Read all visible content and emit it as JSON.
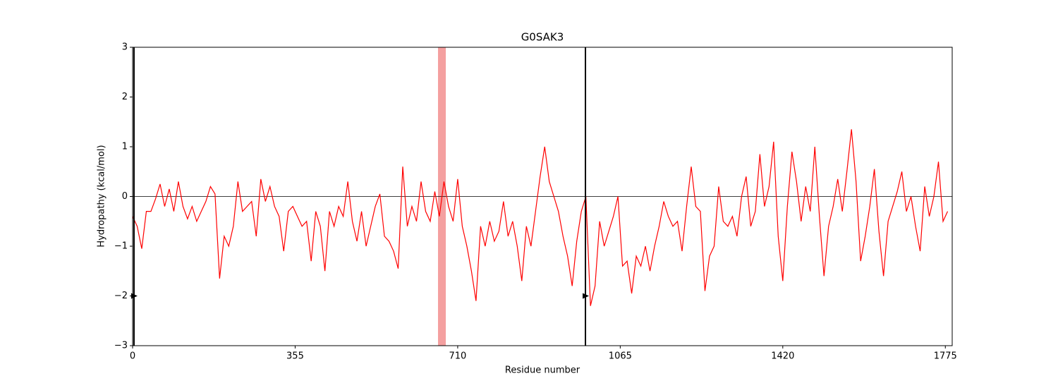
{
  "chart_data": {
    "type": "line",
    "title": "G0SAK3",
    "x_label": "Residue number",
    "y_label": "Hydropathy (kcal/mol)",
    "color": "#ff0000",
    "x": [
      0,
      10,
      20,
      30,
      40,
      50,
      60,
      70,
      80,
      90,
      100,
      110,
      120,
      130,
      140,
      150,
      160,
      170,
      180,
      190,
      200,
      210,
      220,
      230,
      240,
      250,
      260,
      270,
      280,
      290,
      300,
      310,
      320,
      330,
      340,
      350,
      360,
      370,
      380,
      390,
      400,
      410,
      420,
      430,
      440,
      450,
      460,
      470,
      480,
      490,
      500,
      510,
      520,
      530,
      540,
      550,
      560,
      570,
      580,
      590,
      600,
      610,
      620,
      630,
      640,
      650,
      660,
      670,
      680,
      690,
      700,
      710,
      720,
      730,
      740,
      750,
      760,
      770,
      780,
      790,
      800,
      810,
      820,
      830,
      840,
      850,
      860,
      870,
      880,
      890,
      900,
      910,
      920,
      930,
      940,
      950,
      960,
      970,
      980,
      990,
      1000,
      1010,
      1020,
      1030,
      1040,
      1050,
      1060,
      1070,
      1080,
      1090,
      1100,
      1110,
      1120,
      1130,
      1140,
      1150,
      1160,
      1170,
      1180,
      1190,
      1200,
      1210,
      1220,
      1230,
      1240,
      1250,
      1260,
      1270,
      1280,
      1290,
      1300,
      1310,
      1320,
      1330,
      1340,
      1350,
      1360,
      1370,
      1380,
      1390,
      1400,
      1410,
      1420,
      1430,
      1440,
      1450,
      1460,
      1470,
      1480,
      1490,
      1500,
      1510,
      1520,
      1530,
      1540,
      1550,
      1560,
      1570,
      1580,
      1590,
      1600,
      1610,
      1620,
      1630,
      1640,
      1650,
      1660,
      1670,
      1680,
      1690,
      1700,
      1710,
      1720,
      1730,
      1740,
      1750,
      1760,
      1770,
      1780
    ],
    "values": [
      -0.4,
      -0.6,
      -1.05,
      -0.3,
      -0.3,
      -0.05,
      0.25,
      -0.2,
      0.15,
      -0.3,
      0.3,
      -0.2,
      -0.45,
      -0.2,
      -0.5,
      -0.3,
      -0.1,
      0.2,
      0.05,
      -1.65,
      -0.8,
      -1.0,
      -0.6,
      0.3,
      -0.3,
      -0.2,
      -0.1,
      -0.8,
      0.35,
      -0.1,
      0.2,
      -0.2,
      -0.4,
      -1.1,
      -0.3,
      -0.2,
      -0.4,
      -0.6,
      -0.5,
      -1.3,
      -0.3,
      -0.6,
      -1.5,
      -0.3,
      -0.6,
      -0.2,
      -0.4,
      0.3,
      -0.5,
      -0.9,
      -0.3,
      -1.0,
      -0.6,
      -0.2,
      0.05,
      -0.8,
      -0.9,
      -1.1,
      -1.45,
      0.6,
      -0.6,
      -0.2,
      -0.5,
      0.3,
      -0.3,
      -0.5,
      0.1,
      -0.4,
      0.3,
      -0.2,
      -0.5,
      0.35,
      -0.6,
      -1.0,
      -1.5,
      -2.1,
      -0.6,
      -1.0,
      -0.5,
      -0.9,
      -0.7,
      -0.1,
      -0.8,
      -0.5,
      -1.0,
      -1.7,
      -0.6,
      -1.0,
      -0.3,
      0.4,
      1.0,
      0.3,
      0.0,
      -0.3,
      -0.8,
      -1.2,
      -1.8,
      -0.9,
      -0.3,
      0.0,
      -2.2,
      -1.8,
      -0.5,
      -1.0,
      -0.7,
      -0.4,
      0.0,
      -1.4,
      -1.3,
      -1.95,
      -1.2,
      -1.4,
      -1.0,
      -1.5,
      -1.0,
      -0.6,
      -0.1,
      -0.4,
      -0.6,
      -0.5,
      -1.1,
      -0.2,
      0.6,
      -0.2,
      -0.3,
      -1.9,
      -1.2,
      -1.0,
      0.2,
      -0.5,
      -0.6,
      -0.4,
      -0.8,
      0.0,
      0.4,
      -0.6,
      -0.3,
      0.85,
      -0.2,
      0.2,
      1.1,
      -0.8,
      -1.7,
      -0.2,
      0.9,
      0.3,
      -0.5,
      0.2,
      -0.3,
      1.0,
      -0.4,
      -1.6,
      -0.6,
      -0.2,
      0.35,
      -0.3,
      0.5,
      1.35,
      0.3,
      -1.3,
      -0.8,
      -0.2,
      0.55,
      -0.7,
      -1.6,
      -0.5,
      -0.2,
      0.1,
      0.5,
      -0.3,
      0.0,
      -0.6,
      -1.1,
      0.2,
      -0.4,
      0.0,
      0.7,
      -0.5,
      -0.3
    ],
    "xlim": [
      0,
      1790
    ],
    "xticks": [
      0,
      355,
      710,
      1065,
      1420,
      1775
    ],
    "ylim": [
      -3,
      3
    ],
    "yticks": [
      {
        "value": -3,
        "label": "−3"
      },
      {
        "value": -2,
        "label": "−2"
      },
      {
        "value": -1,
        "label": "−1"
      },
      0,
      1,
      2,
      3
    ],
    "hline": 0,
    "span": {
      "start": 667,
      "end": 684,
      "color": "#f4a0a0"
    },
    "vlines": [
      3,
      989
    ],
    "markers": {
      "x": [
        3,
        989
      ],
      "y": [
        -2,
        -2
      ]
    }
  }
}
